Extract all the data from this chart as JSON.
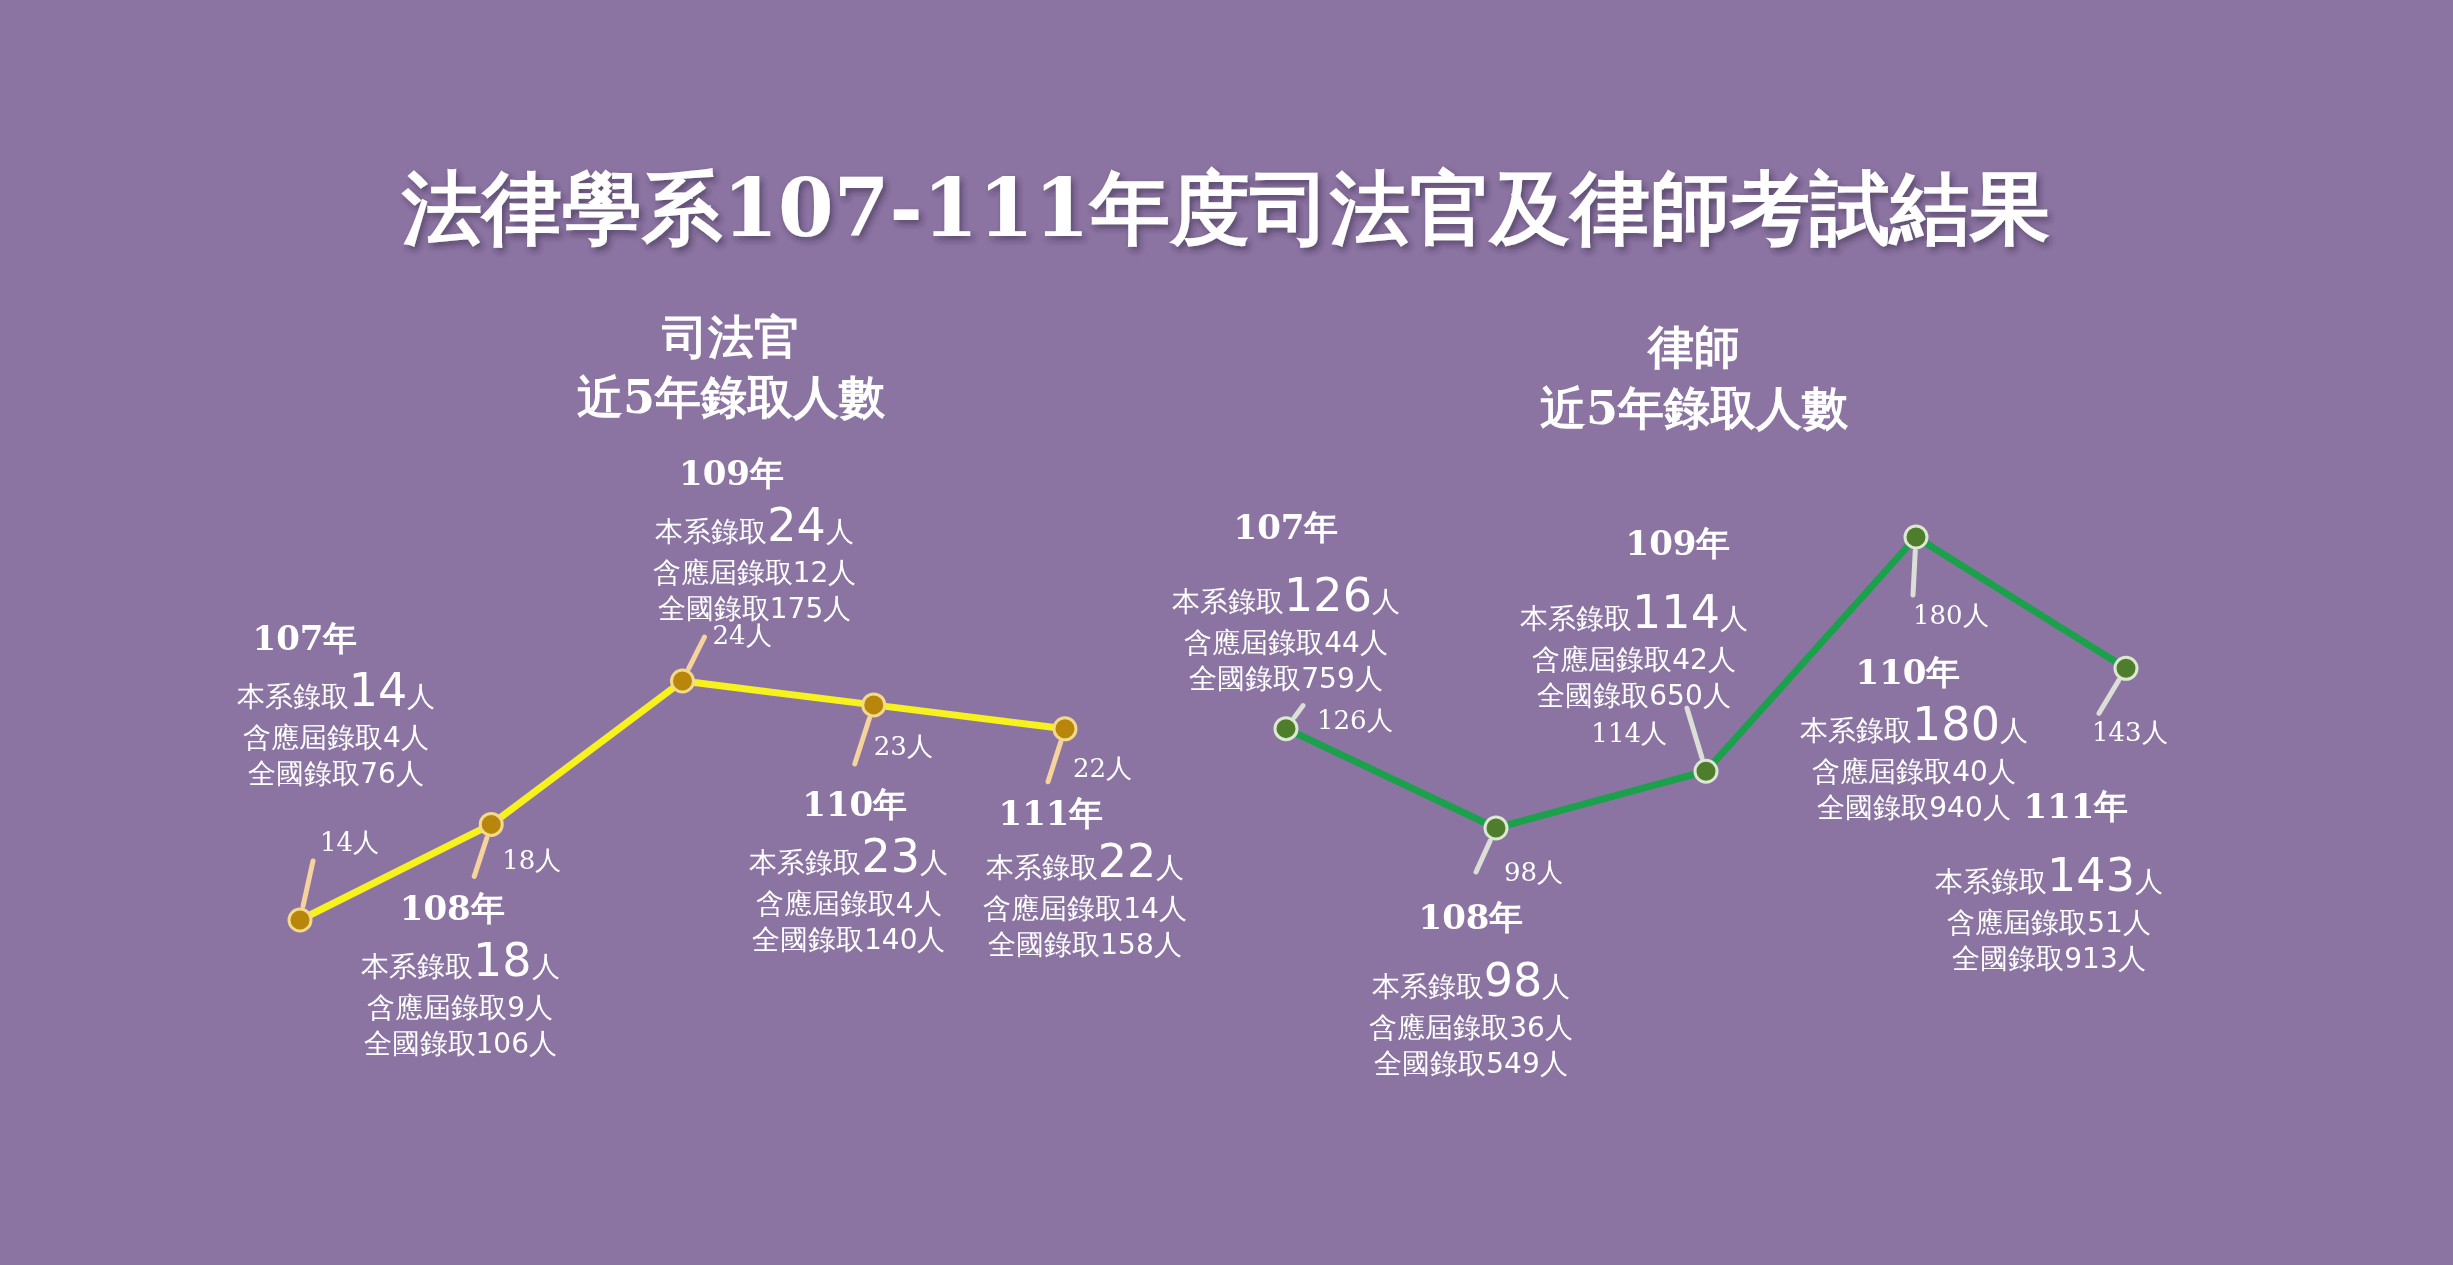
{
  "chart_data": [
    {
      "type": "other",
      "title": "法律學系107-111年度司法官及律師考試結果"
    },
    {
      "type": "line",
      "title": "司法官",
      "subtitle": "近5年錄取人數",
      "categories": [
        null,
        null,
        null,
        null,
        null
      ],
      "tick_labels": false,
      "marker": "circle",
      "line_style": "solid",
      "series": [
        {
          "color": "#f7f21e",
          "values": [
            14,
            18,
            24,
            23,
            22
          ],
          "value_labels": [
            "14人",
            "18人",
            "24人",
            "23人",
            "22人"
          ]
        }
      ],
      "annotations": [
        "107年",
        "本系錄取14人",
        "含應屆錄取4人",
        "全國錄取76人",
        "108年",
        "本系錄取18人",
        "含應屆錄取9人",
        "全國錄取106人",
        "109年",
        "本系錄取24人",
        "含應屆錄取12人",
        "全國錄取175人",
        "110年",
        "本系錄取23人",
        "含應屆錄取4人",
        "全國錄取140人",
        "111年",
        "本系錄取22人",
        "含應屆錄取14人",
        "全國錄取158人"
      ]
    },
    {
      "type": "line",
      "title": "律師",
      "subtitle": "近5年錄取人數",
      "categories": [
        null,
        null,
        null,
        null,
        null
      ],
      "tick_labels": false,
      "marker": "circle",
      "line_style": "solid",
      "series": [
        {
          "color": "#1ba04c",
          "values": [
            126,
            98,
            114,
            180,
            143
          ],
          "value_labels": [
            "126人",
            "98人",
            "114人",
            "180人",
            "143人"
          ]
        }
      ],
      "annotations": [
        "107年",
        "本系錄取126人",
        "含應屆錄取44人",
        "全國錄取759人",
        "108年",
        "本系錄取98人",
        "含應屆錄取36人",
        "全國錄取549人",
        "109年",
        "本系錄取114人",
        "含應屆錄取42人",
        "全國錄取650人",
        "110年",
        "本系錄取180人",
        "含應屆錄取40人",
        "全國錄取940人",
        "111年",
        "本系錄取143人",
        "含應屆錄取51人",
        "全國錄取913人"
      ]
    }
  ]
}
